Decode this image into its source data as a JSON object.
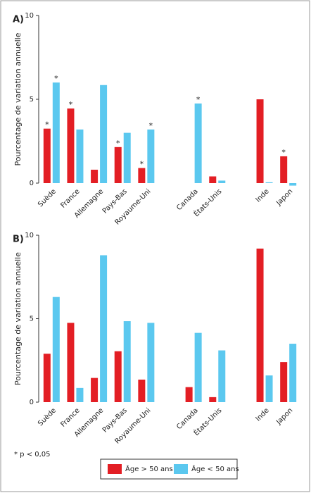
{
  "chart_data": [
    {
      "type": "bar",
      "panel": "A)",
      "y_label": "Pourcentage de variation annuelle",
      "categories": [
        "Suède",
        "France",
        "Allemagne",
        "Pays-Bas",
        "Royaume-Uni",
        null,
        "Canada",
        "États-Unis",
        null,
        "Inde",
        "Japon"
      ],
      "series": [
        {
          "name": "Âge > 50 ans",
          "color": "#e31e24",
          "values": [
            3.25,
            4.45,
            0.8,
            2.15,
            0.9,
            null,
            null,
            0.4,
            null,
            5.0,
            1.6
          ],
          "markers": [
            "*",
            "*",
            null,
            "*",
            "*",
            null,
            null,
            null,
            null,
            null,
            "*"
          ]
        },
        {
          "name": "Âge < 50 ans",
          "color": "#5bc8ef",
          "values": [
            6.0,
            3.2,
            5.85,
            3.0,
            3.2,
            null,
            4.75,
            0.15,
            null,
            0.05,
            -0.15
          ],
          "markers": [
            "*",
            null,
            null,
            null,
            "*",
            null,
            "*",
            null,
            null,
            null,
            null
          ]
        }
      ],
      "ylim": [
        0,
        10
      ],
      "yticks": [
        0,
        5,
        10
      ]
    },
    {
      "type": "bar",
      "panel": "B)",
      "y_label": "Pourcentage de variation annuelle",
      "categories": [
        "Suède",
        "France",
        "Allemagne",
        "Pays-Bas",
        "Royaume-Uni",
        null,
        "Canada",
        "États-Unis",
        null,
        "Inde",
        "Japon"
      ],
      "series": [
        {
          "name": "Âge > 50 ans",
          "color": "#e31e24",
          "values": [
            2.9,
            4.75,
            1.45,
            3.05,
            1.35,
            null,
            0.9,
            0.3,
            null,
            9.2,
            2.4
          ]
        },
        {
          "name": "Âge < 50 ans",
          "color": "#5bc8ef",
          "values": [
            6.3,
            0.85,
            8.8,
            4.85,
            4.75,
            null,
            4.15,
            3.1,
            null,
            1.6,
            3.5
          ]
        }
      ],
      "ylim": [
        0,
        10
      ],
      "yticks": [
        0,
        5,
        10
      ]
    }
  ],
  "footnote": "* p < 0,05"
}
